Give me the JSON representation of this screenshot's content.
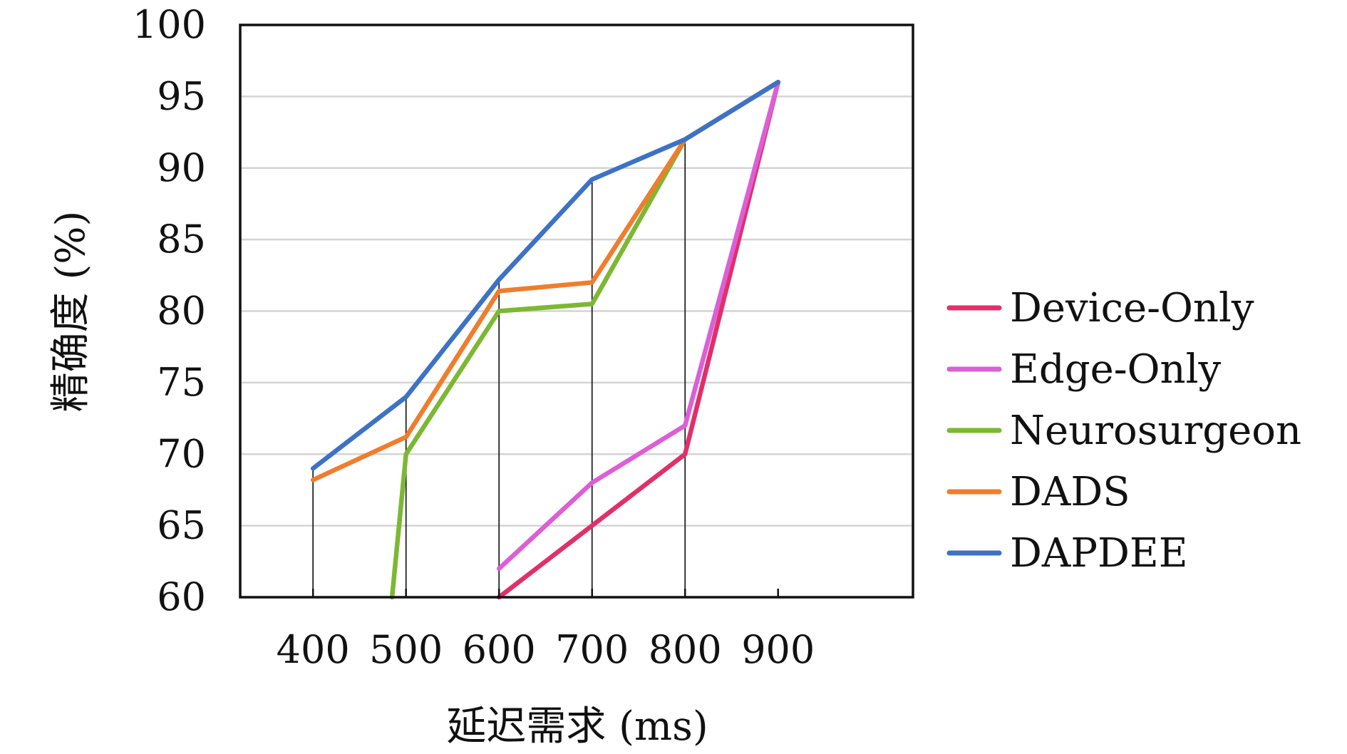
{
  "chart_data": {
    "type": "line",
    "title": "",
    "xlabel": "延迟需求 (ms)",
    "ylabel": "精确度 (%)",
    "x": [
      400,
      500,
      600,
      700,
      800,
      900
    ],
    "x_ticks": [
      "400",
      "500",
      "600",
      "700",
      "800",
      "900"
    ],
    "y_ticks": [
      "60",
      "65",
      "70",
      "75",
      "80",
      "85",
      "90",
      "95",
      "100"
    ],
    "ylim": [
      60,
      100
    ],
    "grid": "horizontal",
    "legend_position": "right",
    "series": [
      {
        "name": "Device-Only",
        "color": "#e0306a",
        "points": [
          [
            600,
            60
          ],
          [
            700,
            65
          ],
          [
            800,
            70
          ],
          [
            900,
            96
          ]
        ]
      },
      {
        "name": "Edge-Only",
        "color": "#dc5fd6",
        "points": [
          [
            600,
            62
          ],
          [
            700,
            68
          ],
          [
            800,
            72
          ],
          [
            900,
            96
          ]
        ]
      },
      {
        "name": "Neurosurgeon",
        "color": "#7cb832",
        "points": [
          [
            485,
            60
          ],
          [
            500,
            70
          ],
          [
            600,
            80
          ],
          [
            700,
            80.5
          ],
          [
            800,
            92
          ],
          [
            900,
            96
          ]
        ]
      },
      {
        "name": "DADS",
        "color": "#ef7d2e",
        "points": [
          [
            400,
            68.2
          ],
          [
            500,
            71.2
          ],
          [
            600,
            81.4
          ],
          [
            700,
            82
          ],
          [
            800,
            92
          ],
          [
            900,
            96
          ]
        ]
      },
      {
        "name": "DAPDEE",
        "color": "#3d72c4",
        "points": [
          [
            400,
            69
          ],
          [
            500,
            74
          ],
          [
            600,
            82.2
          ],
          [
            700,
            89.2
          ],
          [
            800,
            92
          ],
          [
            900,
            96
          ]
        ]
      }
    ],
    "drop_lines": [
      {
        "x": 400,
        "y": 69
      },
      {
        "x": 500,
        "y": 74
      },
      {
        "x": 600,
        "y": 82.2
      },
      {
        "x": 700,
        "y": 89.2
      },
      {
        "x": 800,
        "y": 92
      }
    ]
  }
}
